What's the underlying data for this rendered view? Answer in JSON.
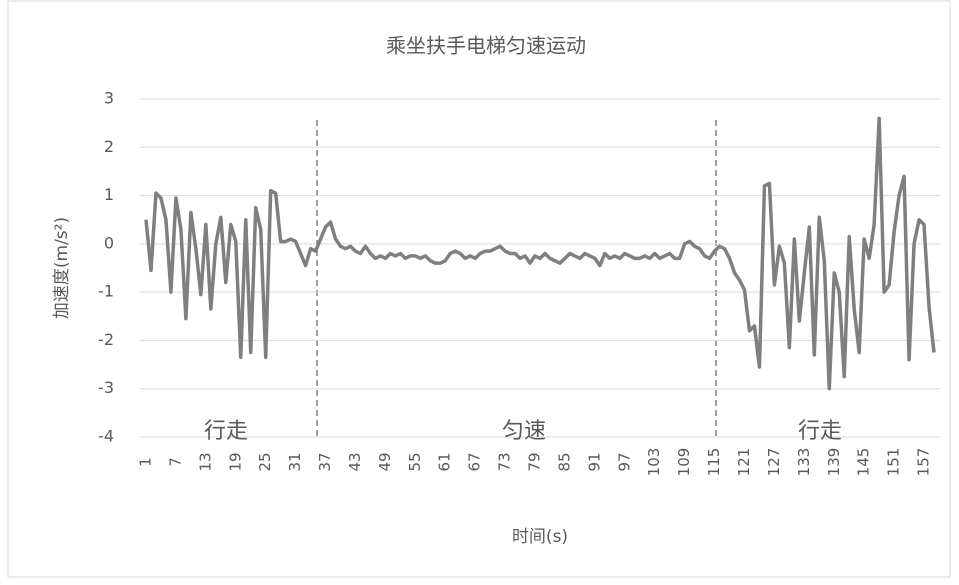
{
  "chart_data": {
    "type": "line",
    "title": "乘坐扶手电梯匀速运动",
    "x_label": "时间(s)",
    "y_label": "加速度(m/s²)",
    "categories": [
      "1",
      null,
      null,
      null,
      null,
      null,
      "7",
      null,
      null,
      null,
      null,
      null,
      "13",
      null,
      null,
      null,
      null,
      null,
      "19",
      null,
      null,
      null,
      null,
      null,
      "25",
      null,
      null,
      null,
      null,
      null,
      "31",
      null,
      null,
      null,
      null,
      null,
      "37",
      null,
      null,
      null,
      null,
      null,
      "43",
      null,
      null,
      null,
      null,
      null,
      "49",
      null,
      null,
      null,
      null,
      null,
      "55",
      null,
      null,
      null,
      null,
      null,
      "61",
      null,
      null,
      null,
      null,
      null,
      "67",
      null,
      null,
      null,
      null,
      null,
      "73",
      null,
      null,
      null,
      null,
      null,
      "79",
      null,
      null,
      null,
      null,
      null,
      "85",
      null,
      null,
      null,
      null,
      null,
      "91",
      null,
      null,
      null,
      null,
      null,
      "97",
      null,
      null,
      null,
      null,
      null,
      "103",
      null,
      null,
      null,
      null,
      null,
      "109",
      null,
      null,
      null,
      null,
      null,
      "115",
      null,
      null,
      null,
      null,
      null,
      "121",
      null,
      null,
      null,
      null,
      null,
      "127",
      null,
      null,
      null,
      null,
      null,
      "133",
      null,
      null,
      null,
      null,
      null,
      "139",
      null,
      null,
      null,
      null,
      null,
      "145",
      null,
      null,
      null,
      null,
      null,
      "151",
      null,
      null,
      null,
      null,
      null,
      "157",
      null,
      null
    ],
    "values": [
      0.5,
      -0.55,
      1.05,
      0.95,
      0.5,
      -1.0,
      0.95,
      0.3,
      -1.55,
      0.65,
      -0.1,
      -1.05,
      0.4,
      -1.35,
      0.0,
      0.55,
      -0.8,
      0.4,
      0.05,
      -2.35,
      0.5,
      -2.25,
      0.75,
      0.3,
      -2.35,
      1.1,
      1.05,
      0.05,
      0.05,
      0.1,
      0.05,
      -0.2,
      -0.45,
      -0.1,
      -0.15,
      0.1,
      0.35,
      0.45,
      0.1,
      -0.05,
      -0.1,
      -0.05,
      -0.15,
      -0.2,
      -0.05,
      -0.2,
      -0.3,
      -0.25,
      -0.3,
      -0.2,
      -0.25,
      -0.2,
      -0.3,
      -0.25,
      -0.25,
      -0.3,
      -0.25,
      -0.35,
      -0.4,
      -0.4,
      -0.35,
      -0.2,
      -0.15,
      -0.2,
      -0.3,
      -0.25,
      -0.3,
      -0.2,
      -0.15,
      -0.15,
      -0.1,
      -0.05,
      -0.15,
      -0.2,
      -0.2,
      -0.3,
      -0.25,
      -0.4,
      -0.25,
      -0.3,
      -0.2,
      -0.3,
      -0.35,
      -0.4,
      -0.3,
      -0.2,
      -0.25,
      -0.3,
      -0.2,
      -0.25,
      -0.3,
      -0.45,
      -0.2,
      -0.3,
      -0.25,
      -0.3,
      -0.2,
      -0.25,
      -0.3,
      -0.3,
      -0.25,
      -0.3,
      -0.2,
      -0.3,
      -0.25,
      -0.2,
      -0.3,
      -0.3,
      0.0,
      0.05,
      -0.05,
      -0.1,
      -0.25,
      -0.3,
      -0.15,
      -0.05,
      -0.1,
      -0.3,
      -0.6,
      -0.75,
      -0.95,
      -1.8,
      -1.7,
      -2.55,
      1.2,
      1.25,
      -0.85,
      -0.05,
      -0.4,
      -2.15,
      0.1,
      -1.6,
      -0.6,
      0.35,
      -2.3,
      0.55,
      -0.35,
      -3.0,
      -0.6,
      -1.0,
      -2.75,
      0.15,
      -1.35,
      -2.25,
      0.1,
      -0.3,
      0.4,
      2.6,
      -1.0,
      -0.85,
      0.25,
      1.0,
      1.4,
      -2.4,
      0.0,
      0.5,
      0.4,
      -1.3,
      -2.25
    ],
    "color": "#7f7f7f",
    "ylim": [
      -4,
      3
    ],
    "yticks": [
      -4,
      -3,
      -2,
      -1,
      0,
      1,
      2,
      3
    ],
    "grid": true,
    "annotations": [
      "行走",
      "匀速",
      "行走"
    ]
  }
}
